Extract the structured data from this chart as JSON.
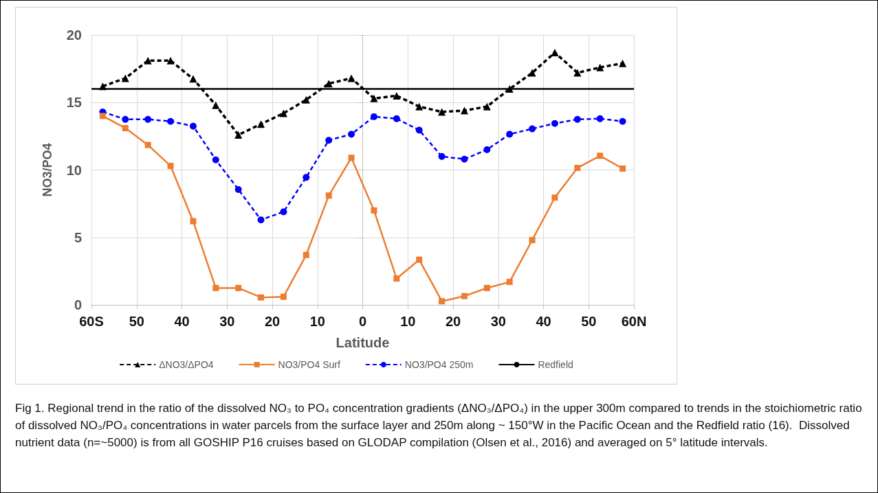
{
  "chart_data": {
    "type": "line",
    "xlabel": "Latitude",
    "ylabel": "NO3/PO4",
    "x": [
      -57.5,
      -52.5,
      -47.5,
      -42.5,
      -37.5,
      -32.5,
      -27.5,
      -22.5,
      -17.5,
      -12.5,
      -7.5,
      -2.5,
      2.5,
      7.5,
      12.5,
      17.5,
      22.5,
      27.5,
      32.5,
      37.5,
      42.5,
      47.5,
      52.5,
      57.5
    ],
    "series": [
      {
        "name": "ΔNO3/ΔPO4",
        "color": "#000000",
        "marker": "triangle",
        "line_style": "dashed",
        "values": [
          16.2,
          16.8,
          18.1,
          18.1,
          16.75,
          14.8,
          12.6,
          13.4,
          14.2,
          15.2,
          16.4,
          16.8,
          15.3,
          15.5,
          14.7,
          14.3,
          14.4,
          14.7,
          16.0,
          17.2,
          18.7,
          17.2,
          17.6,
          17.9
        ]
      },
      {
        "name": "NO3/PO4 Surf",
        "color": "#ed7d31",
        "marker": "square",
        "line_style": "solid",
        "values": [
          14.0,
          13.1,
          11.85,
          10.3,
          6.2,
          1.25,
          1.25,
          0.55,
          0.6,
          3.7,
          8.1,
          10.9,
          7.0,
          1.95,
          3.35,
          0.27,
          0.65,
          1.25,
          1.7,
          4.8,
          7.95,
          10.15,
          11.05,
          10.1
        ]
      },
      {
        "name": "NO3/PO4 250m",
        "color": "#0000ff",
        "marker": "circle",
        "line_style": "dashed",
        "values": [
          14.3,
          13.75,
          13.75,
          13.6,
          13.25,
          10.75,
          8.55,
          6.3,
          6.9,
          9.45,
          12.2,
          12.65,
          13.95,
          13.8,
          12.95,
          11.0,
          10.8,
          11.5,
          12.65,
          13.05,
          13.45,
          13.75,
          13.8,
          13.6
        ]
      },
      {
        "name": "Redfield",
        "color": "#000000",
        "marker": "none",
        "line_style": "solid",
        "x": [
          -60,
          60
        ],
        "values": [
          16,
          16
        ]
      }
    ],
    "xlim": [
      -60,
      60
    ],
    "xticks": [
      {
        "value": -60,
        "label": "60S"
      },
      {
        "value": -50,
        "label": "50"
      },
      {
        "value": -40,
        "label": "40"
      },
      {
        "value": -30,
        "label": "30"
      },
      {
        "value": -20,
        "label": "20"
      },
      {
        "value": -10,
        "label": "10"
      },
      0,
      {
        "value": 10,
        "label": "10"
      },
      {
        "value": 20,
        "label": "20"
      },
      {
        "value": 30,
        "label": "30"
      },
      {
        "value": 40,
        "label": "40"
      },
      {
        "value": 50,
        "label": "50"
      },
      {
        "value": 60,
        "label": "60N"
      }
    ],
    "ylim": [
      0,
      20
    ],
    "yticks": [
      0,
      5,
      10,
      15,
      20
    ],
    "grid": true,
    "legend": "bottom",
    "annotations": [
      "Fig 1. Regional trend in the ratio of the dissolved NO₃ to PO₄ concentration gradients (ΔNO₃/ΔPO₄) in the upper 300m compared to trends in the stoichiometric ratio of dissolved NO₃/PO₄ concentrations in water parcels from the surface layer and 250m along ~ 150°W in the Pacific Ocean and the Redfield ratio (16).  Dissolved nutrient data (n=~5000) is from all GOSHIP P16 cruises based on GLODAP compilation (Olsen et al., 2016) and averaged on 5° latitude intervals."
    ]
  }
}
